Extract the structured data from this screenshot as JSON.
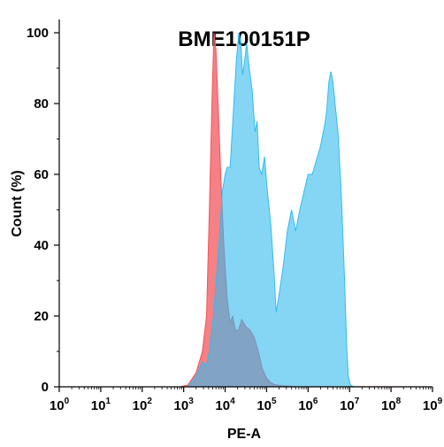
{
  "chart_data": {
    "type": "area",
    "title": "BME100151P",
    "xlabel": "PE-A",
    "ylabel": "Count (%)",
    "x_scale": "log",
    "xlim": [
      0,
      9
    ],
    "ylim": [
      0,
      100
    ],
    "x_ticks": [
      {
        "base": "10",
        "exp": "0"
      },
      {
        "base": "10",
        "exp": "1"
      },
      {
        "base": "10",
        "exp": "2"
      },
      {
        "base": "10",
        "exp": "3"
      },
      {
        "base": "10",
        "exp": "4"
      },
      {
        "base": "10",
        "exp": "5"
      },
      {
        "base": "10",
        "exp": "6"
      },
      {
        "base": "10",
        "exp": "7"
      },
      {
        "base": "10",
        "exp": "8"
      },
      {
        "base": "10",
        "exp": "9"
      }
    ],
    "y_ticks": [
      "0",
      "20",
      "40",
      "60",
      "80",
      "100"
    ],
    "grid": false,
    "series": [
      {
        "color": "#f2555c",
        "opacity": 0.75,
        "points": [
          [
            0,
            0
          ],
          [
            2.9,
            0
          ],
          [
            3.1,
            0.5
          ],
          [
            3.3,
            4
          ],
          [
            3.45,
            10
          ],
          [
            3.55,
            20
          ],
          [
            3.62,
            50
          ],
          [
            3.68,
            80
          ],
          [
            3.73,
            100
          ],
          [
            3.78,
            95
          ],
          [
            3.83,
            80
          ],
          [
            3.9,
            58
          ],
          [
            3.97,
            40
          ],
          [
            4.05,
            25
          ],
          [
            4.12,
            18
          ],
          [
            4.18,
            20
          ],
          [
            4.25,
            16
          ],
          [
            4.32,
            16
          ],
          [
            4.4,
            19
          ],
          [
            4.5,
            17
          ],
          [
            4.6,
            16
          ],
          [
            4.7,
            14
          ],
          [
            4.8,
            10
          ],
          [
            4.9,
            5
          ],
          [
            5.0,
            2.5
          ],
          [
            5.1,
            1.2
          ],
          [
            5.2,
            0.6
          ],
          [
            5.4,
            0.3
          ],
          [
            5.7,
            0.1
          ],
          [
            9,
            0
          ]
        ]
      },
      {
        "color": "#33bbee",
        "opacity": 0.6,
        "points": [
          [
            0,
            0
          ],
          [
            3.1,
            0
          ],
          [
            3.3,
            3
          ],
          [
            3.45,
            7
          ],
          [
            3.55,
            6
          ],
          [
            3.62,
            10
          ],
          [
            3.72,
            20
          ],
          [
            3.85,
            40
          ],
          [
            3.93,
            55
          ],
          [
            4.0,
            60
          ],
          [
            4.05,
            62
          ],
          [
            4.12,
            62
          ],
          [
            4.2,
            78
          ],
          [
            4.27,
            92
          ],
          [
            4.33,
            100
          ],
          [
            4.38,
            97
          ],
          [
            4.42,
            88
          ],
          [
            4.47,
            92
          ],
          [
            4.52,
            97
          ],
          [
            4.58,
            90
          ],
          [
            4.65,
            84
          ],
          [
            4.72,
            72
          ],
          [
            4.77,
            75
          ],
          [
            4.82,
            62
          ],
          [
            4.88,
            60
          ],
          [
            4.95,
            65
          ],
          [
            5.02,
            55
          ],
          [
            5.1,
            46
          ],
          [
            5.18,
            32
          ],
          [
            5.23,
            21
          ],
          [
            5.3,
            26
          ],
          [
            5.4,
            34
          ],
          [
            5.5,
            44
          ],
          [
            5.6,
            50
          ],
          [
            5.7,
            44
          ],
          [
            5.8,
            50
          ],
          [
            5.9,
            55
          ],
          [
            6.0,
            60
          ],
          [
            6.1,
            60
          ],
          [
            6.2,
            64
          ],
          [
            6.3,
            68
          ],
          [
            6.4,
            74
          ],
          [
            6.45,
            78
          ],
          [
            6.5,
            86
          ],
          [
            6.55,
            89
          ],
          [
            6.6,
            86
          ],
          [
            6.65,
            80
          ],
          [
            6.72,
            72
          ],
          [
            6.8,
            55
          ],
          [
            6.88,
            30
          ],
          [
            6.93,
            12
          ],
          [
            6.97,
            3
          ],
          [
            7.02,
            0.5
          ],
          [
            7.1,
            0
          ],
          [
            9,
            0
          ]
        ]
      }
    ]
  }
}
